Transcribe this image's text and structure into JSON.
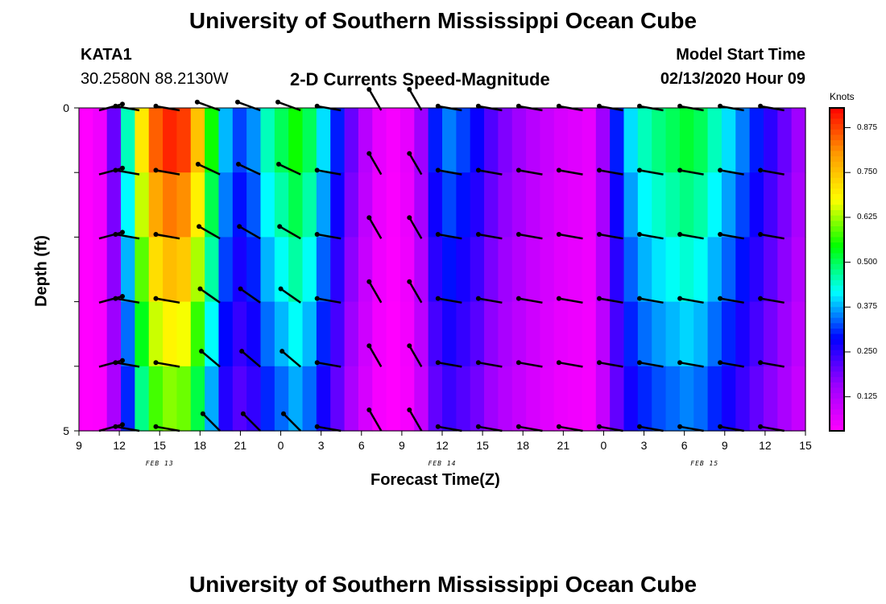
{
  "header": {
    "top_title": "University of Southern Mississippi Ocean Cube",
    "bottom_title": "University of Southern Mississippi Ocean Cube",
    "station_id": "KATA1",
    "station_coords": "30.2580N 88.2130W",
    "model_start_label": "Model Start Time",
    "model_start_value": "02/13/2020 Hour 09"
  },
  "chart_data": {
    "type": "heatmap",
    "title": "2-D Currents Speed-Magnitude",
    "xlabel": "Forecast Time(Z)",
    "ylabel": "Depth (ft)",
    "x_tick_labels": [
      "9",
      "12",
      "15",
      "18",
      "21",
      "0",
      "3",
      "6",
      "9",
      "12",
      "15",
      "18",
      "21",
      "0",
      "3",
      "6",
      "9",
      "12",
      "15"
    ],
    "x_date_labels": [
      {
        "label": "FEB 13",
        "at_tick": 2
      },
      {
        "label": "FEB 14",
        "at_tick": 9
      },
      {
        "label": "FEB 15",
        "at_tick": 15.5
      }
    ],
    "y_tick_labels": [
      "0",
      "5"
    ],
    "ylim": [
      0,
      5
    ],
    "colorbar": {
      "unit": "Knots",
      "ticks": [
        "0.875",
        "0.750",
        "0.625",
        "0.500",
        "0.375",
        "0.250",
        "0.125"
      ],
      "range": [
        0.03,
        0.93
      ],
      "colors": [
        "#ff00ff",
        "#9900ff",
        "#0000ff",
        "#00ffff",
        "#00ff00",
        "#ffff00",
        "#ff9900",
        "#ff0000"
      ]
    },
    "depth_rows": [
      0,
      1,
      2,
      3,
      4,
      5
    ],
    "forecast_hours_start": 9,
    "speed_profile_knots": [
      0.03,
      0.05,
      0.2,
      0.45,
      0.7,
      0.85,
      0.9,
      0.88,
      0.75,
      0.55,
      0.38,
      0.32,
      0.36,
      0.45,
      0.5,
      0.55,
      0.5,
      0.4,
      0.3,
      0.2,
      0.12,
      0.06,
      0.04,
      0.06,
      0.15,
      0.3,
      0.35,
      0.32,
      0.28,
      0.22,
      0.18,
      0.15,
      0.12,
      0.1,
      0.08,
      0.07,
      0.06,
      0.15,
      0.3,
      0.4,
      0.45,
      0.48,
      0.5,
      0.52,
      0.5,
      0.45,
      0.4,
      0.35,
      0.3,
      0.25,
      0.2,
      0.15
    ],
    "grid": false
  }
}
